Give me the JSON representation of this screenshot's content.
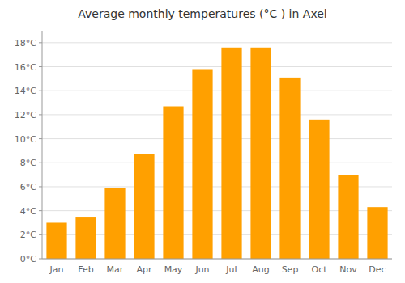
{
  "chart_data": {
    "type": "bar",
    "title": "Average monthly temperatures (°C ) in Axel",
    "categories": [
      "Jan",
      "Feb",
      "Mar",
      "Apr",
      "May",
      "Jun",
      "Jul",
      "Aug",
      "Sep",
      "Oct",
      "Nov",
      "Dec"
    ],
    "values": [
      3.0,
      3.5,
      5.9,
      8.7,
      12.7,
      15.8,
      17.6,
      17.6,
      15.1,
      11.6,
      7.0,
      4.3
    ],
    "color": "#FFA000",
    "ylim": [
      0,
      19
    ],
    "yticks": [
      {
        "value": 0,
        "label": "0°C"
      },
      {
        "value": 2,
        "label": "2°C"
      },
      {
        "value": 4,
        "label": "4°C"
      },
      {
        "value": 6,
        "label": "6°C"
      },
      {
        "value": 8,
        "label": "8°C"
      },
      {
        "value": 10,
        "label": "10°C"
      },
      {
        "value": 12,
        "label": "12°C"
      },
      {
        "value": 14,
        "label": "14°C"
      },
      {
        "value": 16,
        "label": "16°C"
      },
      {
        "value": 18,
        "label": "18°C"
      }
    ],
    "grid": true
  }
}
